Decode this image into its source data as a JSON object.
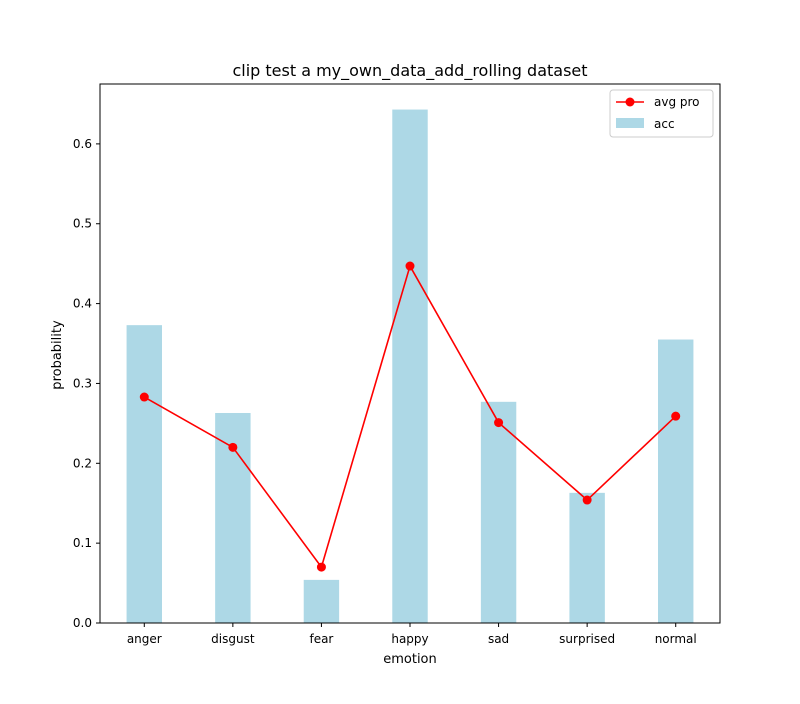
{
  "chart_data": {
    "type": "bar",
    "title": "clip test a my_own_data_add_rolling dataset",
    "xlabel": "emotion",
    "ylabel": "probability",
    "categories": [
      "anger",
      "disgust",
      "fear",
      "happy",
      "sad",
      "surprised",
      "normal"
    ],
    "ylim": [
      0,
      0.675
    ],
    "yticks": [
      "0.0",
      "0.1",
      "0.2",
      "0.3",
      "0.4",
      "0.5",
      "0.6"
    ],
    "grid": false,
    "legend_position": "upper right",
    "series": [
      {
        "name": "acc",
        "type": "bar",
        "color": "#add8e6",
        "values": [
          0.373,
          0.263,
          0.054,
          0.643,
          0.277,
          0.163,
          0.355
        ]
      },
      {
        "name": "avg pro",
        "type": "line",
        "marker": "circle",
        "color": "#ff0000",
        "values": [
          0.283,
          0.22,
          0.07,
          0.447,
          0.251,
          0.154,
          0.259
        ]
      }
    ]
  }
}
